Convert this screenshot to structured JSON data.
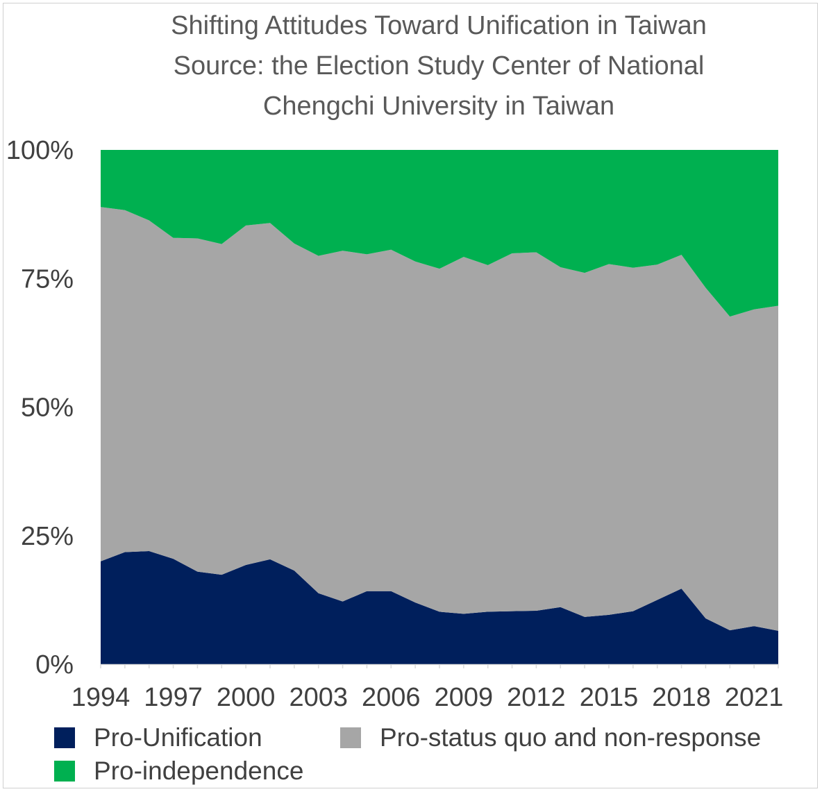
{
  "chart_data": {
    "type": "area",
    "stacked": true,
    "percent": true,
    "title_lines": [
      "Shifting Attitudes Toward Unification in Taiwan",
      "Source: the Election Study Center of National",
      "Chengchi University in Taiwan"
    ],
    "x": [
      1994,
      1995,
      1996,
      1997,
      1998,
      1999,
      2000,
      2001,
      2002,
      2003,
      2004,
      2005,
      2006,
      2007,
      2008,
      2009,
      2010,
      2011,
      2012,
      2013,
      2014,
      2015,
      2016,
      2017,
      2018,
      2019,
      2020,
      2021,
      2022
    ],
    "x_tick_labels": [
      "1994",
      "1997",
      "2000",
      "2003",
      "2006",
      "2009",
      "2012",
      "2015",
      "2018",
      "2021"
    ],
    "y_tick_labels": [
      "0%",
      "25%",
      "50%",
      "75%",
      "100%"
    ],
    "ylim": [
      0,
      100
    ],
    "series": [
      {
        "name": "Pro-Unification",
        "color": "#001f5c",
        "values": [
          20.0,
          21.8,
          22.0,
          20.5,
          18.0,
          17.4,
          19.3,
          20.4,
          18.2,
          13.8,
          12.2,
          14.2,
          14.2,
          12.0,
          10.2,
          9.8,
          10.2,
          10.3,
          10.4,
          11.1,
          9.2,
          9.6,
          10.3,
          12.5,
          14.7,
          8.9,
          6.6,
          7.4,
          6.5
        ]
      },
      {
        "name": "Pro-status quo and non-response",
        "color": "#a6a6a6",
        "values": [
          68.9,
          66.5,
          64.3,
          62.4,
          64.8,
          64.3,
          66.0,
          65.4,
          63.6,
          65.6,
          68.2,
          65.5,
          66.4,
          66.3,
          66.7,
          69.4,
          67.4,
          69.6,
          69.7,
          66.1,
          66.9,
          68.2,
          66.8,
          65.2,
          64.9,
          64.3,
          61.0,
          61.6,
          63.2
        ]
      },
      {
        "name": "Pro-independence",
        "color": "#00b050",
        "values": [
          11.1,
          11.7,
          13.7,
          17.1,
          17.2,
          18.3,
          14.7,
          14.2,
          18.2,
          20.6,
          19.6,
          20.3,
          19.4,
          21.7,
          23.1,
          20.8,
          22.4,
          20.1,
          19.9,
          22.8,
          23.9,
          22.2,
          22.9,
          22.3,
          20.4,
          26.8,
          32.4,
          31.0,
          30.3
        ]
      }
    ],
    "legend_position": "bottom",
    "grid": false
  }
}
